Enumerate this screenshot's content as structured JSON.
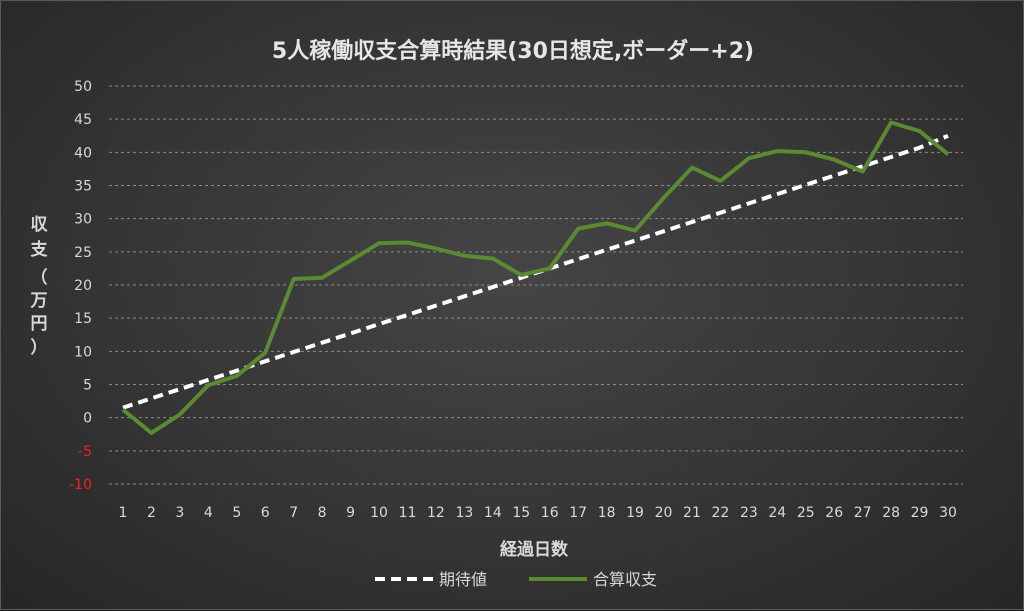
{
  "chart_data": {
    "type": "line",
    "title": "5人稼働収支合算時結果(30日想定,ボーダー+2)",
    "xlabel": "経過日数",
    "ylabel_chars": [
      "収",
      "支",
      "（",
      "万",
      "円",
      "）"
    ],
    "x": [
      1,
      2,
      3,
      4,
      5,
      6,
      7,
      8,
      9,
      10,
      11,
      12,
      13,
      14,
      15,
      16,
      17,
      18,
      19,
      20,
      21,
      22,
      23,
      24,
      25,
      26,
      27,
      28,
      29,
      30
    ],
    "ylim": [
      -10,
      50
    ],
    "yticks": [
      50,
      45,
      40,
      35,
      30,
      25,
      20,
      15,
      10,
      5,
      0,
      -5,
      -10
    ],
    "grid": true,
    "legend_position": "bottom",
    "series": [
      {
        "name": "期待値",
        "style": "dashed",
        "color": "#ffffff",
        "values": [
          1.5,
          2.9,
          4.3,
          5.7,
          7.1,
          8.5,
          9.9,
          11.3,
          12.7,
          14.1,
          15.5,
          16.9,
          18.3,
          19.7,
          21.1,
          22.5,
          23.9,
          25.3,
          26.7,
          28.1,
          29.5,
          30.9,
          32.3,
          33.7,
          35.1,
          36.5,
          37.9,
          39.3,
          40.7,
          42.5
        ]
      },
      {
        "name": "合算収支",
        "style": "solid",
        "color": "#5b8a32",
        "values": [
          1.2,
          -2.3,
          0.5,
          4.9,
          6.3,
          9.8,
          20.9,
          21.1,
          23.7,
          26.3,
          26.4,
          25.5,
          24.4,
          24.0,
          21.5,
          22.5,
          28.5,
          29.3,
          28.2,
          33.1,
          37.7,
          35.7,
          39.1,
          40.2,
          40.0,
          38.9,
          37.1,
          44.5,
          43.2,
          39.7
        ]
      }
    ],
    "colors": {
      "text": "#d9d9d9",
      "negative_tick": "#ff1a1a",
      "grid": "#8a8a8a"
    }
  }
}
